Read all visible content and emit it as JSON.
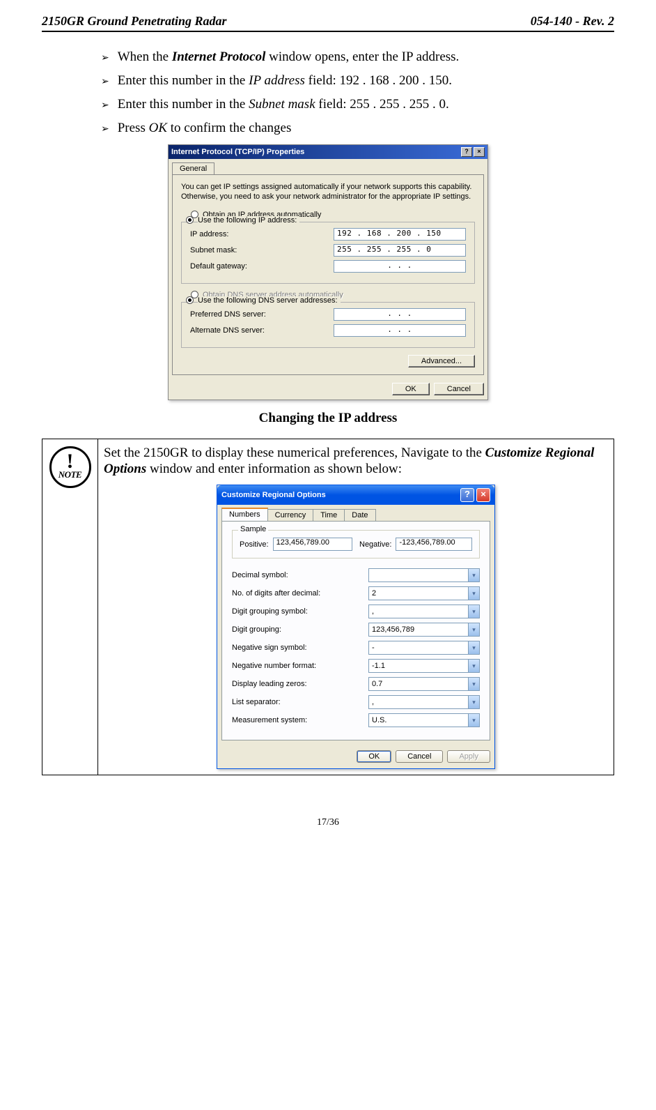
{
  "header": {
    "left": "2150GR Ground Penetrating Radar",
    "right": "054-140 - Rev. 2"
  },
  "bullets": [
    {
      "pre": "When the ",
      "em": "Internet Protocol",
      "post": " window opens, enter the IP address."
    },
    {
      "pre": "Enter this number in the ",
      "em": "IP address",
      "post": " field: 192 . 168 . 200 . 150."
    },
    {
      "pre": "Enter this number in the ",
      "em": "Subnet mask",
      "post": " field: 255 . 255 . 255 . 0."
    },
    {
      "pre": "Press ",
      "em": "OK",
      "post": " to confirm the changes"
    }
  ],
  "tcpip": {
    "title": "Internet Protocol (TCP/IP) Properties",
    "help_btn": "?",
    "close_btn": "×",
    "tab": "General",
    "desc": "You can get IP settings assigned automatically if your network supports this capability. Otherwise, you need to ask your network administrator for the appropriate IP settings.",
    "radio_auto": "Obtain an IP address automatically",
    "radio_use_ip": "Use the following IP address:",
    "ip_label": "IP address:",
    "ip_value": "192 . 168 . 200 . 150",
    "subnet_label": "Subnet mask:",
    "subnet_value": "255 . 255 . 255 .   0",
    "gateway_label": "Default gateway:",
    "gateway_value": "  .     .     .",
    "radio_auto_dns": "Obtain DNS server address automatically",
    "radio_use_dns": "Use the following DNS server addresses:",
    "pref_dns_label": "Preferred DNS server:",
    "pref_dns_value": "  .     .     .",
    "alt_dns_label": "Alternate DNS server:",
    "alt_dns_value": "  .     .     .",
    "advanced": "Advanced...",
    "ok": "OK",
    "cancel": "Cancel"
  },
  "caption1": "Changing the IP address",
  "note": {
    "bang": "!",
    "label": "NOTE",
    "text_pre": "Set the 2150GR to display these numerical preferences, Navigate to the ",
    "text_em": "Customize Regional Options",
    "text_post": " window and enter information as shown below:"
  },
  "regional": {
    "title": "Customize Regional Options",
    "help": "?",
    "close": "×",
    "tabs": [
      "Numbers",
      "Currency",
      "Time",
      "Date"
    ],
    "sample_legend": "Sample",
    "pos_label": "Positive:",
    "pos_value": "123,456,789.00",
    "neg_label": "Negative:",
    "neg_value": "-123,456,789.00",
    "settings": [
      {
        "label": "Decimal symbol:",
        "value": ""
      },
      {
        "label": "No. of digits after decimal:",
        "value": "2"
      },
      {
        "label": "Digit grouping symbol:",
        "value": ","
      },
      {
        "label": "Digit grouping:",
        "value": "123,456,789"
      },
      {
        "label": "Negative sign symbol:",
        "value": "-"
      },
      {
        "label": "Negative number format:",
        "value": "-1.1"
      },
      {
        "label": "Display leading zeros:",
        "value": "0.7"
      },
      {
        "label": "List separator:",
        "value": ","
      },
      {
        "label": "Measurement system:",
        "value": "U.S."
      }
    ],
    "ok": "OK",
    "cancel": "Cancel",
    "apply": "Apply"
  },
  "footer": "17/36"
}
